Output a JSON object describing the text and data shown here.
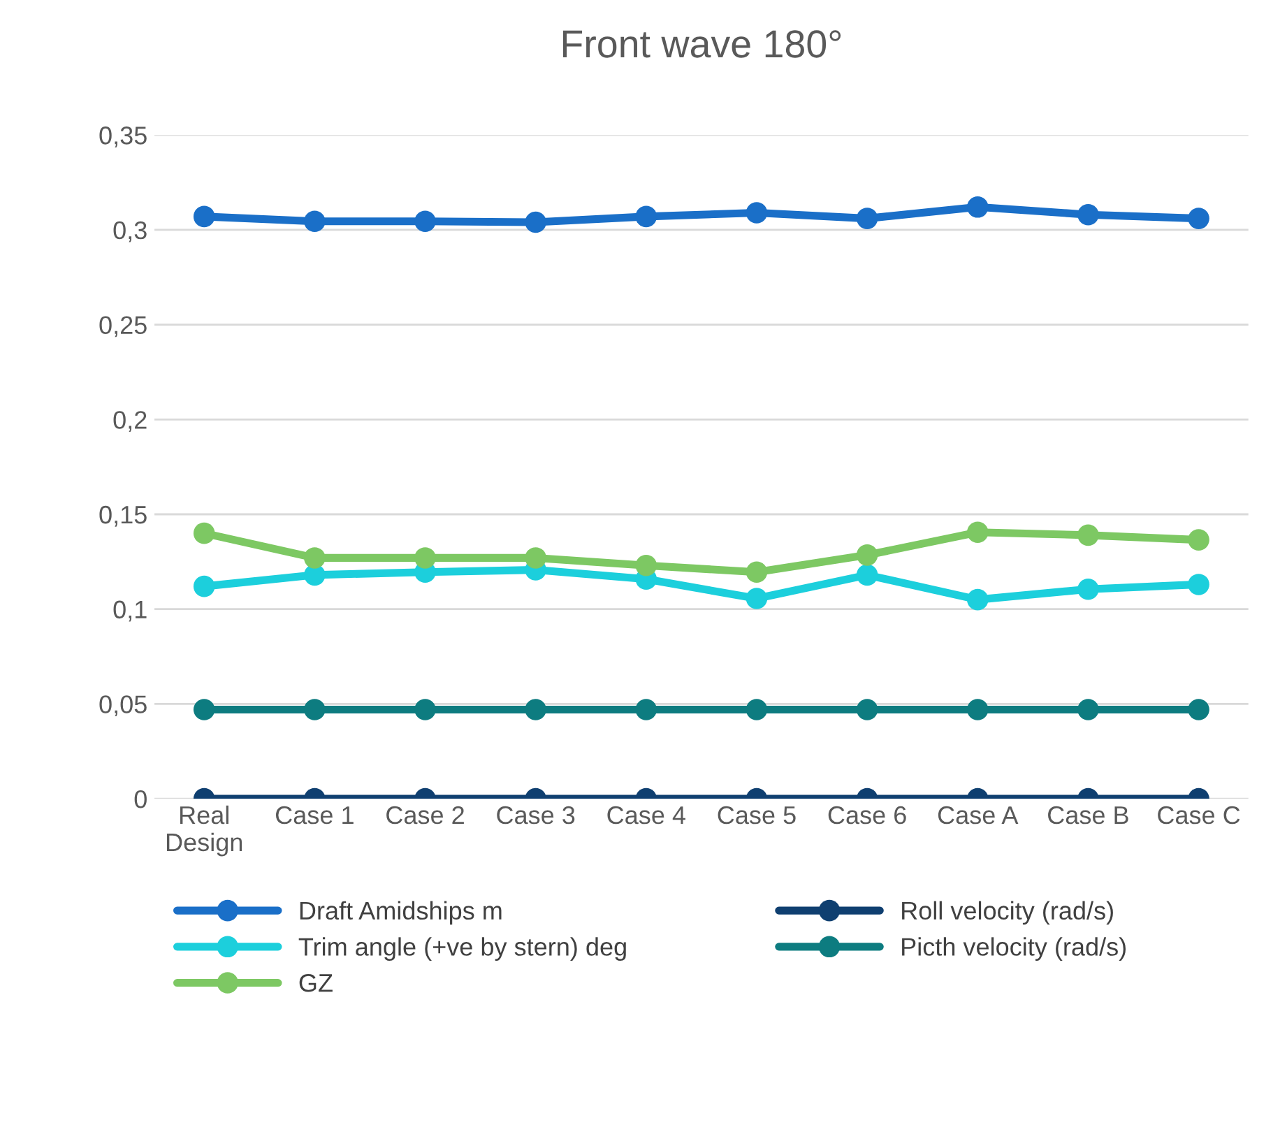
{
  "chart_data": {
    "type": "line",
    "title": "Front wave 180°",
    "categories": [
      "Real\nDesign",
      "Case 1",
      "Case 2",
      "Case 3",
      "Case 4",
      "Case 5",
      "Case 6",
      "Case A",
      "Case B",
      "Case C"
    ],
    "series": [
      {
        "name": "Draft Amidships m",
        "color": "#1a6fc8",
        "values": [
          0.307,
          0.3045,
          0.3045,
          0.304,
          0.307,
          0.309,
          0.306,
          0.312,
          0.308,
          0.306
        ]
      },
      {
        "name": "Trim angle (+ve by stern) deg",
        "color": "#1ccfdc",
        "values": [
          0.112,
          0.118,
          0.1195,
          0.1207,
          0.1158,
          0.1056,
          0.118,
          0.105,
          0.1105,
          0.113
        ]
      },
      {
        "name": "GZ",
        "color": "#7dc863",
        "values": [
          0.14,
          0.127,
          0.127,
          0.127,
          0.123,
          0.1195,
          0.1285,
          0.1405,
          0.139,
          0.1365
        ]
      },
      {
        "name": "Roll velocity (rad/s)",
        "color": "#0f3f70",
        "values": [
          0,
          0,
          0,
          0,
          0,
          0,
          0,
          0,
          0,
          0
        ]
      },
      {
        "name": "Picth velocity (rad/s)",
        "color": "#0d7c80",
        "values": [
          0.047,
          0.047,
          0.047,
          0.047,
          0.047,
          0.047,
          0.047,
          0.047,
          0.047,
          0.047
        ]
      }
    ],
    "ylim": [
      0,
      0.35
    ],
    "yticks": [
      {
        "value": 0,
        "label": "0"
      },
      {
        "value": 0.05,
        "label": "0,05"
      },
      {
        "value": 0.1,
        "label": "0,1"
      },
      {
        "value": 0.15,
        "label": "0,15"
      },
      {
        "value": 0.2,
        "label": "0,2"
      },
      {
        "value": 0.25,
        "label": "0,25"
      },
      {
        "value": 0.3,
        "label": "0,3"
      },
      {
        "value": 0.35,
        "label": "0,35"
      }
    ],
    "grid": "y",
    "legend": "bottom",
    "marker": "circle",
    "line_style": "solid"
  }
}
